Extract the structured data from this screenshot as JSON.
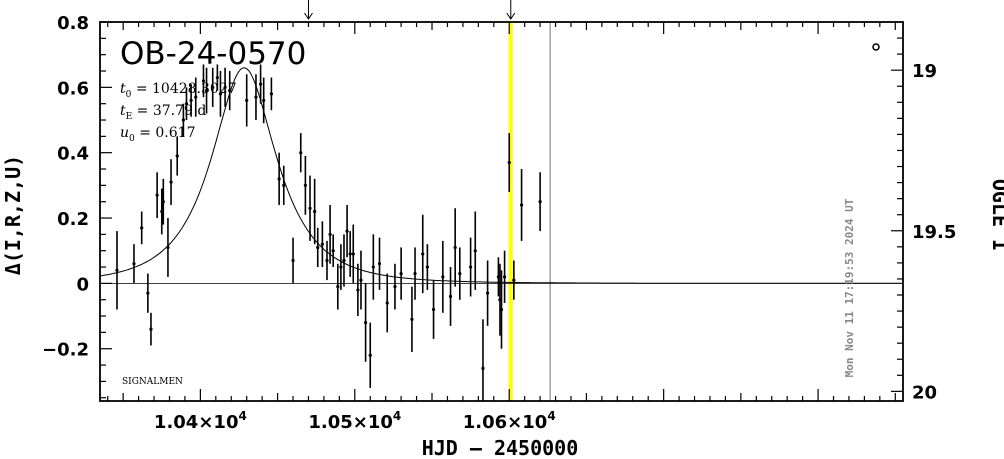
{
  "chart_data": {
    "type": "scatter",
    "title": "OB-24-0570",
    "xlabel": "HJD – 2450000",
    "ylabel_left": "Δ(I,R,Z,U)",
    "ylabel_right": "OGLE I",
    "xlim": [
      10335,
      10855
    ],
    "ylim": [
      -0.36,
      0.8
    ],
    "right_ylim": [
      20.03,
      18.85
    ],
    "x_ticks": [
      {
        "value": 10400,
        "mant": "1.04",
        "sep": "×",
        "base": "10",
        "exp": "4"
      },
      {
        "value": 10500,
        "mant": "1.05",
        "sep": "×",
        "base": "10",
        "exp": "4"
      },
      {
        "value": 10600,
        "mant": "1.06",
        "sep": "×",
        "base": "10",
        "exp": "4"
      }
    ],
    "y_ticks": [
      {
        "value": 0.8,
        "label": "0.8"
      },
      {
        "value": 0.6,
        "label": "0.6"
      },
      {
        "value": 0.4,
        "label": "0.4"
      },
      {
        "value": 0.2,
        "label": "0.2"
      },
      {
        "value": 0.0,
        "label": "0"
      },
      {
        "value": -0.2,
        "label": "−0.2"
      }
    ],
    "right_ticks": [
      {
        "value": 19.0,
        "label": "19"
      },
      {
        "value": 19.5,
        "label": "19.5"
      },
      {
        "value": 20.0,
        "label": "20"
      }
    ],
    "params": {
      "t0_sym": "t",
      "t0_sub": "0",
      "t0_val": " = 10428.3027",
      "tE_sym": "t",
      "tE_sub": "E",
      "tE_val": " = 37.79 d",
      "u0_sym": "u",
      "u0_sub": "0",
      "u0_val": " = 0.617"
    },
    "model": {
      "t0": 10428.3027,
      "tE": 37.79,
      "u0": 0.617,
      "baseline_level": 0.0
    },
    "today_line_x": 10601.0,
    "current_line_x": 10626.5,
    "arrow_x": [
      10470,
      10601
    ],
    "timestamp": "Mon Nov 11 17:19:53 2024 UT",
    "signalmen_label": "SIGNALMEN",
    "colors": {
      "today_line": "#ffff00",
      "current_line": "#a0a0a0",
      "timestamp": "#888888",
      "ink": "#000000"
    },
    "points": [
      [
        10346,
        0.04,
        0.12
      ],
      [
        10357,
        0.06,
        0.06
      ],
      [
        10362,
        0.17,
        0.05
      ],
      [
        10366,
        -0.03,
        0.06
      ],
      [
        10368,
        -0.14,
        0.05
      ],
      [
        10372,
        0.27,
        0.07
      ],
      [
        10375,
        0.22,
        0.07
      ],
      [
        10376,
        0.25,
        0.07
      ],
      [
        10379,
        0.11,
        0.09
      ],
      [
        10381,
        0.31,
        0.07
      ],
      [
        10385,
        0.39,
        0.06
      ],
      [
        10389,
        0.5,
        0.05
      ],
      [
        10391,
        0.55,
        0.05
      ],
      [
        10394,
        0.56,
        0.05
      ],
      [
        10397,
        0.57,
        0.06
      ],
      [
        10402,
        0.62,
        0.05
      ],
      [
        10404,
        0.59,
        0.07
      ],
      [
        10408,
        0.6,
        0.06
      ],
      [
        10411,
        0.63,
        0.04
      ],
      [
        10413,
        0.58,
        0.07
      ],
      [
        10416,
        0.6,
        0.06
      ],
      [
        10419,
        0.59,
        0.06
      ],
      [
        10430,
        0.56,
        0.08
      ],
      [
        10436,
        0.57,
        0.07
      ],
      [
        10439,
        0.61,
        0.06
      ],
      [
        10441,
        0.56,
        0.07
      ],
      [
        10446,
        0.58,
        0.05
      ],
      [
        10451,
        0.32,
        0.08
      ],
      [
        10454,
        0.3,
        0.06
      ],
      [
        10460,
        0.07,
        0.07
      ],
      [
        10465,
        0.4,
        0.06
      ],
      [
        10468,
        0.3,
        0.09
      ],
      [
        10471,
        0.23,
        0.1
      ],
      [
        10474,
        0.22,
        0.1
      ],
      [
        10476,
        0.11,
        0.06
      ],
      [
        10479,
        0.12,
        0.07
      ],
      [
        10482,
        0.07,
        0.06
      ],
      [
        10484,
        0.15,
        0.09
      ],
      [
        10486,
        0.1,
        0.05
      ],
      [
        10489,
        -0.01,
        0.07
      ],
      [
        10491,
        0.05,
        0.07
      ],
      [
        10493,
        0.07,
        0.08
      ],
      [
        10495,
        0.16,
        0.08
      ],
      [
        10497,
        0.09,
        0.07
      ],
      [
        10499,
        0.09,
        0.09
      ],
      [
        10502,
        -0.02,
        0.08
      ],
      [
        10504,
        0.01,
        0.09
      ],
      [
        10507,
        -0.12,
        0.12
      ],
      [
        10510,
        -0.22,
        0.1
      ],
      [
        10512,
        0.05,
        0.1
      ],
      [
        10516,
        0.06,
        0.08
      ],
      [
        10521,
        -0.06,
        0.09
      ],
      [
        10526,
        -0.01,
        0.07
      ],
      [
        10530,
        0.03,
        0.08
      ],
      [
        10537,
        -0.11,
        0.1
      ],
      [
        10539,
        0.03,
        0.08
      ],
      [
        10544,
        0.09,
        0.12
      ],
      [
        10547,
        0.05,
        0.07
      ],
      [
        10551,
        -0.08,
        0.09
      ],
      [
        10557,
        0.02,
        0.11
      ],
      [
        10562,
        -0.04,
        0.09
      ],
      [
        10565,
        0.11,
        0.12
      ],
      [
        10568,
        0.03,
        0.08
      ],
      [
        10575,
        0.05,
        0.09
      ],
      [
        10578,
        0.1,
        0.12
      ],
      [
        10583,
        -0.26,
        0.15
      ],
      [
        10586,
        -0.03,
        0.1
      ],
      [
        10593,
        0.02,
        0.06
      ],
      [
        10594,
        -0.05,
        0.11
      ],
      [
        10595,
        -0.08,
        0.12
      ],
      [
        10597,
        0.02,
        0.08
      ],
      [
        10600,
        0.37,
        0.09
      ],
      [
        10603,
        0.01,
        0.06
      ],
      [
        10608,
        0.24,
        0.11
      ],
      [
        10620,
        0.25,
        0.09
      ]
    ]
  }
}
